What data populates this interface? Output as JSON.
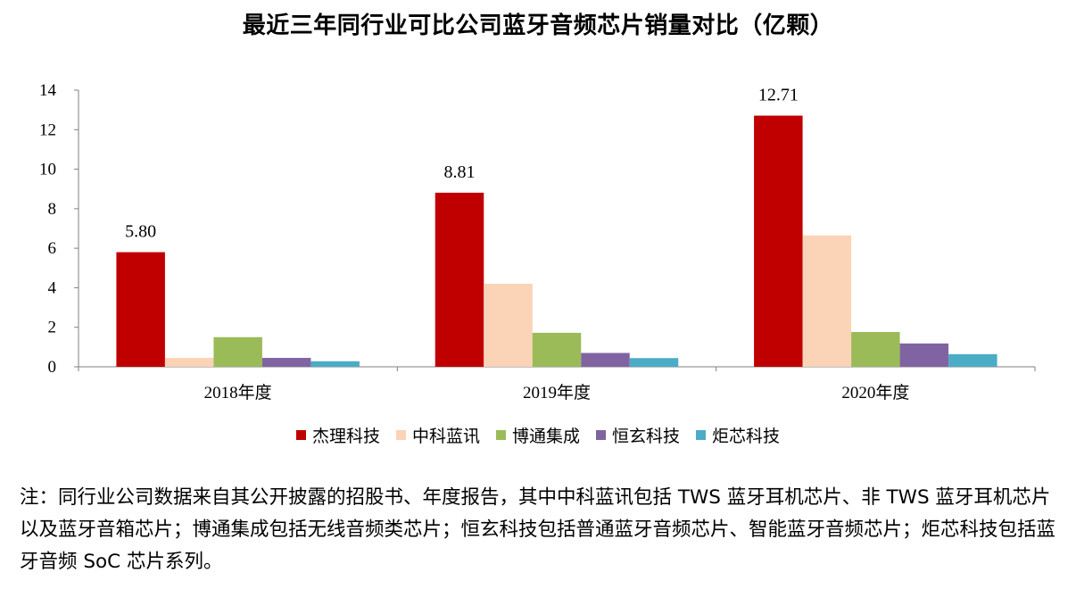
{
  "chart_data": {
    "type": "bar",
    "title": "最近三年同行业可比公司蓝牙音频芯片销量对比（亿颗）",
    "categories": [
      "2018年度",
      "2019年度",
      "2020年度"
    ],
    "series": [
      {
        "name": "杰理科技",
        "color": "#c00000",
        "values": [
          5.8,
          8.81,
          12.71
        ]
      },
      {
        "name": "中科蓝讯",
        "color": "#fbd3b6",
        "values": [
          0.45,
          4.2,
          6.65
        ]
      },
      {
        "name": "博通集成",
        "color": "#9bbb59",
        "values": [
          1.5,
          1.72,
          1.76
        ]
      },
      {
        "name": "恒玄科技",
        "color": "#8064a2",
        "values": [
          0.45,
          0.7,
          1.18
        ]
      },
      {
        "name": "炬芯科技",
        "color": "#4bacc6",
        "values": [
          0.28,
          0.44,
          0.64
        ]
      }
    ],
    "data_labels": [
      "5.80",
      "8.81",
      "12.71"
    ],
    "ylim": [
      0,
      14
    ],
    "yticks": [
      0,
      2,
      4,
      6,
      8,
      10,
      12,
      14
    ],
    "xlabel": "",
    "ylabel": "",
    "grid": false,
    "legend_position": "bottom"
  },
  "note": "注：同行业公司数据来自其公开披露的招股书、年度报告，其中中科蓝讯包括 TWS 蓝牙耳机芯片、非 TWS 蓝牙耳机芯片以及蓝牙音箱芯片；博通集成包括无线音频类芯片；恒玄科技包括普通蓝牙音频芯片、智能蓝牙音频芯片；炬芯科技包括蓝牙音频 SoC 芯片系列。"
}
